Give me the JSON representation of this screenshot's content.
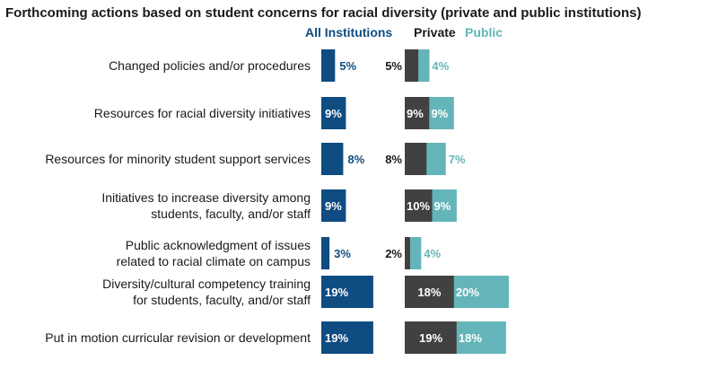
{
  "chart_data": {
    "type": "bar",
    "title": "Forthcoming actions based on student concerns for racial diversity (private and public institutions)",
    "categories": [
      [
        "Changed policies and/or procedures"
      ],
      [
        "Resources for racial diversity initiatives"
      ],
      [
        "Resources for minority student support services"
      ],
      [
        "Initiatives to increase diversity among",
        "students, faculty, and/or staff"
      ],
      [
        "Public acknowledgment of issues",
        "related to racial climate on campus"
      ],
      [
        "Diversity/cultural competency training",
        "for students, faculty, and/or staff"
      ],
      [
        "Put in motion curricular revision or development"
      ]
    ],
    "series": [
      {
        "name": "All Institutions",
        "values": [
          5,
          9,
          8,
          9,
          3,
          19,
          19
        ],
        "labels": [
          "5%",
          "9%",
          "8%",
          "9%",
          "3%",
          "19%",
          "19%"
        ],
        "color": "#0f4c81"
      },
      {
        "name": "Private",
        "values": [
          5,
          9,
          8,
          10,
          2,
          18,
          19
        ],
        "labels": [
          "5%",
          "9%",
          "8%",
          "10%",
          "2%",
          "18%",
          "19%"
        ],
        "color": "#414141"
      },
      {
        "name": "Public",
        "values": [
          4,
          9,
          7,
          9,
          4,
          20,
          18
        ],
        "labels": [
          "4%",
          "9%",
          "7%",
          "9%",
          "4%",
          "20%",
          "18%"
        ],
        "color": "#64b5b9"
      }
    ],
    "stacked_groups": [
      [
        "All Institutions"
      ],
      [
        "Private",
        "Public"
      ]
    ],
    "xlim": [
      0,
      20
    ],
    "legend_position": "top",
    "grid": false
  }
}
